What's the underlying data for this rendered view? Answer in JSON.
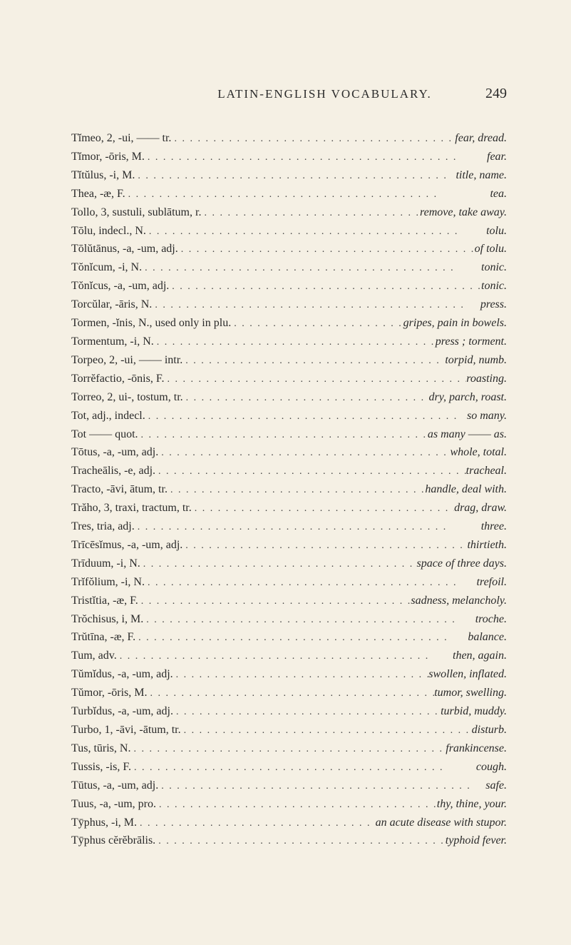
{
  "header": {
    "title": "LATIN-ENGLISH VOCABULARY.",
    "page_number": "249"
  },
  "entries": [
    {
      "term": "Tĭmeo, 2, -ui, —— tr.",
      "def": "fear, dread."
    },
    {
      "term": "Tĭmor, -ōris, M.",
      "def": "fear."
    },
    {
      "term": "Tĭtŭlus, -i, M.",
      "def": "title, name."
    },
    {
      "term": "Thea, -æ, F.",
      "def": "tea."
    },
    {
      "term": "Tollo, 3, sustuli, sublātum, r.",
      "def": "remove, take away."
    },
    {
      "term": "Tōlu, indecl., N.",
      "def": "tolu."
    },
    {
      "term": "Tōlŭtānus, -a, -um, adj.",
      "def": "of tolu."
    },
    {
      "term": "Tŏnĭcum, -i, N.",
      "def": "tonic."
    },
    {
      "term": "Tŏnĭcus, -a, -um, adj.",
      "def": "tonic."
    },
    {
      "term": "Torcŭlar, -āris, N.",
      "def": "press."
    },
    {
      "term": "Tormen, -ĭnis, N., used only in plu.",
      "def": "gripes, pain in bowels."
    },
    {
      "term": "Tormentum, -i, N.",
      "def": "press ; torment."
    },
    {
      "term": "Torpeo, 2, -ui, —— intr.",
      "def": "torpid, numb."
    },
    {
      "term": "Torrĕfactio, -ōnis, F.",
      "def": "roasting."
    },
    {
      "term": "Torreo, 2, ui-, tostum, tr.",
      "def": "dry, parch, roast."
    },
    {
      "term": "Tot, adj., indecl.",
      "def": "so many."
    },
    {
      "term": "Tot —— quot.",
      "def": "as many —— as."
    },
    {
      "term": "Tōtus, -a, -um, adj.",
      "def": "whole, total."
    },
    {
      "term": "Tracheālis, -e, adj.",
      "def": "tracheal."
    },
    {
      "term": "Tracto, -āvi, ātum, tr.",
      "def": "handle, deal with."
    },
    {
      "term": "Trăho, 3, traxi, tractum, tr.",
      "def": "drag, draw."
    },
    {
      "term": "Tres, tria, adj.",
      "def": "three."
    },
    {
      "term": "Trīcēsĭmus, -a, -um, adj.",
      "def": "thirtieth."
    },
    {
      "term": "Trīduum, -i, N.",
      "def": "space of three days."
    },
    {
      "term": "Trĭfŏlium, -i, N.",
      "def": "trefoil."
    },
    {
      "term": "Tristĭtia, -æ, F.",
      "def": "sadness, melancholy."
    },
    {
      "term": "Trŏchisus, i, M.",
      "def": "troche."
    },
    {
      "term": "Trŭtīna, -æ, F.",
      "def": "balance."
    },
    {
      "term": "Tum, adv.",
      "def": "then, again."
    },
    {
      "term": "Tŭmĭdus, -a, -um, adj.",
      "def": "swollen, inflated."
    },
    {
      "term": "Tŭmor, -ōris, M.",
      "def": "tumor, swelling."
    },
    {
      "term": "Turbĭdus, -a, -um, adj.",
      "def": "turbid, muddy."
    },
    {
      "term": "Turbo, 1, -āvi, -ātum, tr.",
      "def": "disturb."
    },
    {
      "term": "Tus, tūris, N.",
      "def": "frankincense."
    },
    {
      "term": "Tussis, -is, F.",
      "def": "cough."
    },
    {
      "term": "Tūtus, -a, -um, adj.",
      "def": "safe."
    },
    {
      "term": "Tuus, -a, -um, pro.",
      "def": "thy, thine, your."
    },
    {
      "term": "Tȳphus, -i, M.",
      "def": "an acute disease with stupor."
    },
    {
      "term": "Tȳphus cĕrĕbrālis.",
      "def": "typhoid fever."
    }
  ],
  "dots_fill": ". . . . . . . . . . . . . . . . . . . . . . . . . . . . . . . . . . . . . . . ."
}
